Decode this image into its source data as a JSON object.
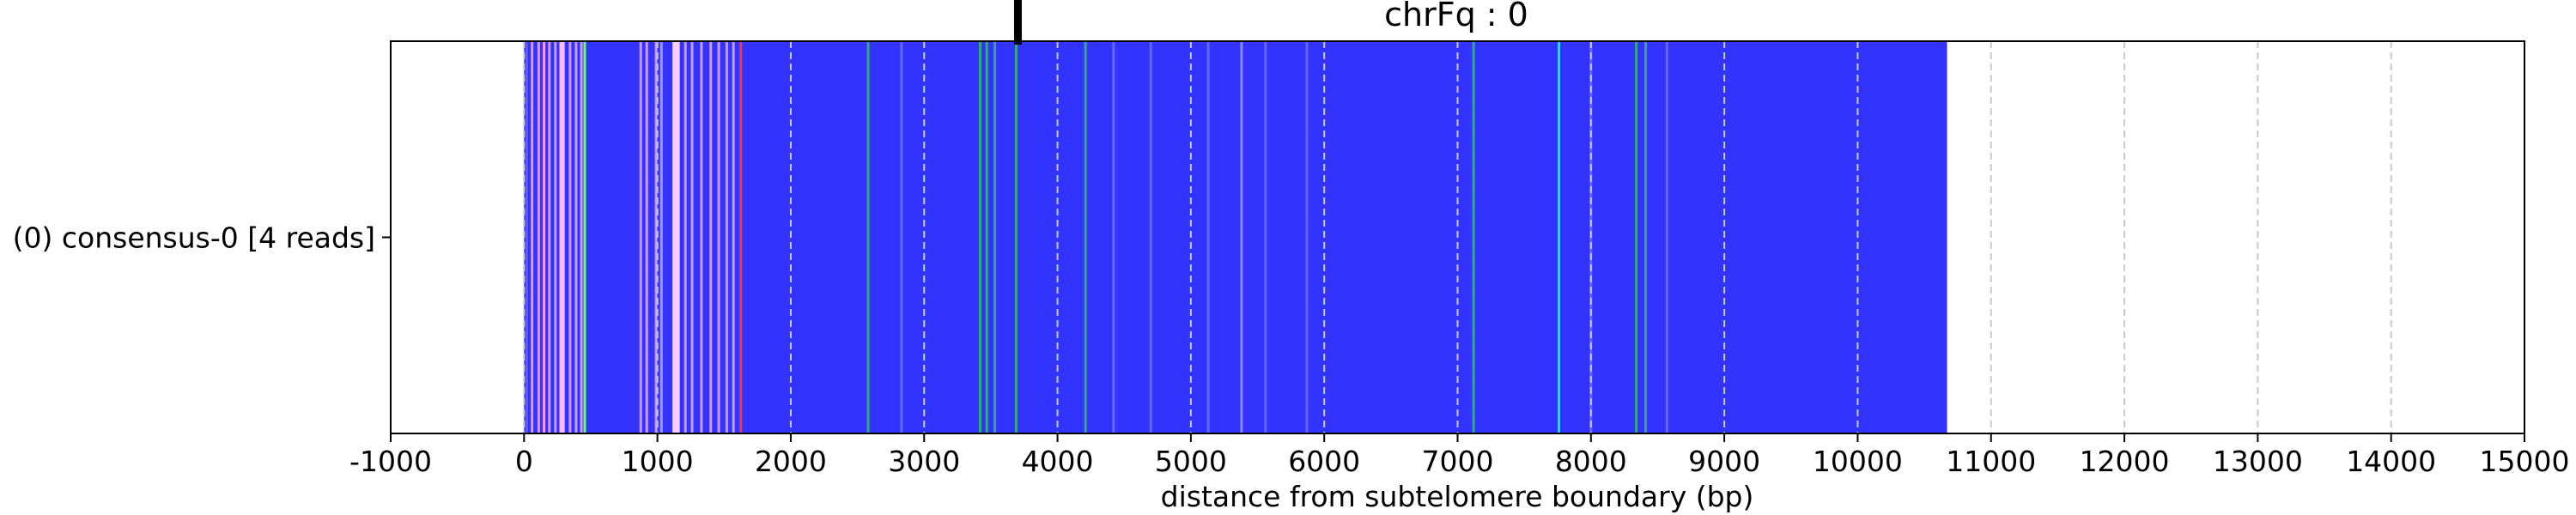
{
  "chart_data": {
    "type": "heatmap",
    "title": "chrFq : 0",
    "xlabel": "distance from subtelomere boundary (bp)",
    "xlim": [
      -1000,
      15000
    ],
    "xticks": [
      -1000,
      0,
      1000,
      2000,
      3000,
      4000,
      5000,
      6000,
      7000,
      8000,
      9000,
      10000,
      11000,
      12000,
      13000,
      14000,
      15000
    ],
    "grid": "vertical dashed at x ticks",
    "marker_x": 3700,
    "tracks": [
      {
        "label": "(0) consensus-0 [4 reads]",
        "start": 0,
        "end": 10670,
        "base_color": "#3333ff",
        "features": [
          {
            "x": 20,
            "color": "#5a5aff"
          },
          {
            "x": 60,
            "color": "#cc99ff"
          },
          {
            "x": 110,
            "color": "#cc99ff"
          },
          {
            "x": 150,
            "color": "#ff99ff"
          },
          {
            "x": 190,
            "color": "#cc99ff"
          },
          {
            "x": 235,
            "color": "#cc99ff"
          },
          {
            "x": 285,
            "color": "#ffbbff",
            "w": 40
          },
          {
            "x": 345,
            "color": "#cc99ff"
          },
          {
            "x": 390,
            "color": "#cc99ff"
          },
          {
            "x": 430,
            "color": "#cc99ff"
          },
          {
            "x": 455,
            "color": "#66ff66"
          },
          {
            "x": 875,
            "color": "#cc99ff"
          },
          {
            "x": 920,
            "color": "#cc99ff"
          },
          {
            "x": 990,
            "color": "#cc99ff"
          },
          {
            "x": 1030,
            "color": "#9999ff"
          },
          {
            "x": 1140,
            "color": "#ffccff",
            "w": 55
          },
          {
            "x": 1210,
            "color": "#cc99ff"
          },
          {
            "x": 1260,
            "color": "#cc99ff"
          },
          {
            "x": 1330,
            "color": "#cc99ff"
          },
          {
            "x": 1400,
            "color": "#cc99ff"
          },
          {
            "x": 1460,
            "color": "#cc99ff"
          },
          {
            "x": 1520,
            "color": "#cc99ff"
          },
          {
            "x": 1570,
            "color": "#cc99ff"
          },
          {
            "x": 1625,
            "color": "#ff3333"
          },
          {
            "x": 2580,
            "color": "#33aa77"
          },
          {
            "x": 2830,
            "color": "#6666ff"
          },
          {
            "x": 3420,
            "color": "#33aa77"
          },
          {
            "x": 3470,
            "color": "#33aa77"
          },
          {
            "x": 3530,
            "color": "#33aa77"
          },
          {
            "x": 3690,
            "color": "#33aa77"
          },
          {
            "x": 4210,
            "color": "#33aa77"
          },
          {
            "x": 4420,
            "color": "#6666ff"
          },
          {
            "x": 4700,
            "color": "#6666ff"
          },
          {
            "x": 5130,
            "color": "#6666ff"
          },
          {
            "x": 5380,
            "color": "#8888ff"
          },
          {
            "x": 5560,
            "color": "#6666ff"
          },
          {
            "x": 5870,
            "color": "#6666ff"
          },
          {
            "x": 7120,
            "color": "#33aa77"
          },
          {
            "x": 7760,
            "color": "#33ccff"
          },
          {
            "x": 8000,
            "color": "#6666ff"
          },
          {
            "x": 8340,
            "color": "#33aa77"
          },
          {
            "x": 8410,
            "color": "#33aa77"
          },
          {
            "x": 8570,
            "color": "#6666ff"
          }
        ]
      }
    ]
  }
}
